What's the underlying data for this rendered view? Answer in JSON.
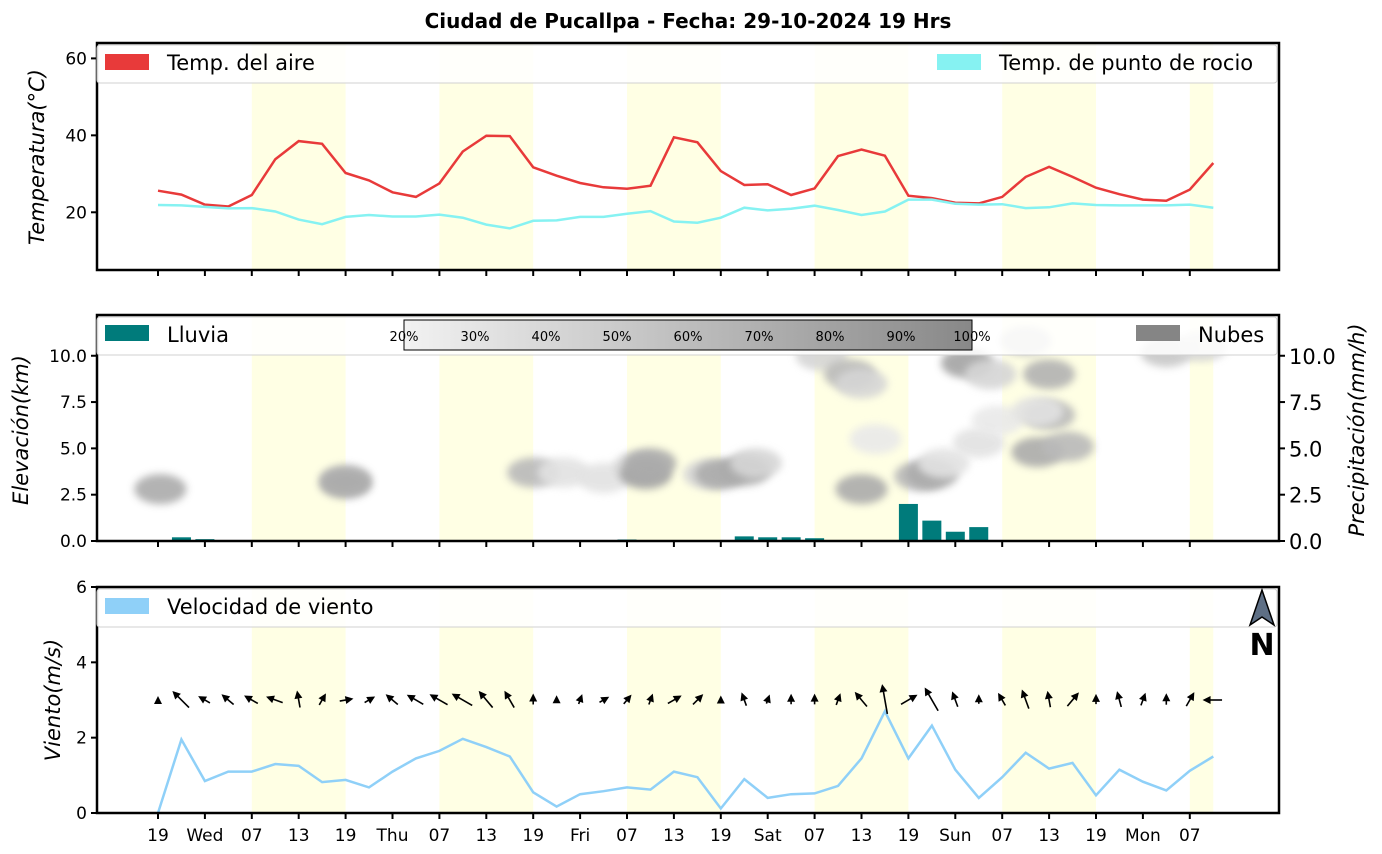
{
  "title": "Ciudad de Pucallpa   -   Fecha: 29-10-2024 19 Hrs",
  "colors": {
    "air_temp": "#e83a3a",
    "dew_point": "#86f2f2",
    "rain": "#007b7b",
    "clouds": "#858585",
    "wind": "#8fd0f8",
    "day_band": "#ffffe4",
    "arrow": "#000000"
  },
  "x_ticks": [
    "19",
    "Wed",
    "07",
    "13",
    "19",
    "Thu",
    "07",
    "13",
    "19",
    "Fri",
    "07",
    "13",
    "19",
    "Sat",
    "07",
    "13",
    "19",
    "Sun",
    "07",
    "13",
    "19",
    "Mon",
    "07"
  ],
  "daytime_bands": [
    [
      2,
      4
    ],
    [
      6,
      8
    ],
    [
      10,
      12
    ],
    [
      14,
      16
    ],
    [
      18,
      20
    ],
    [
      22,
      22.5
    ]
  ],
  "chart_data": [
    {
      "type": "line",
      "panel": "temperature",
      "ylabel": "Temperatura(°C)",
      "ylim": [
        5,
        64
      ],
      "yticks": [
        20,
        40,
        60
      ],
      "x_step_hours": 3,
      "series": [
        {
          "name": "Temp. del aire",
          "values": [
            25.6,
            24.6,
            22.0,
            21.5,
            24.5,
            33.8,
            38.5,
            37.8,
            30.2,
            28.3,
            25.2,
            24.0,
            27.5,
            35.8,
            39.9,
            39.8,
            31.7,
            29.5,
            27.6,
            26.5,
            26.1,
            26.9,
            39.5,
            38.2,
            30.7,
            27.1,
            27.3,
            24.5,
            26.2,
            34.6,
            36.3,
            34.7,
            24.3,
            23.7,
            22.5,
            22.3,
            24.0,
            29.2,
            31.8,
            29.2,
            26.4,
            24.7,
            23.3,
            23.0,
            25.9,
            32.8
          ]
        },
        {
          "name": "Temp. de punto de rocio",
          "values": [
            21.9,
            21.8,
            21.4,
            21.0,
            21.1,
            20.2,
            18.1,
            16.9,
            18.8,
            19.3,
            18.9,
            18.9,
            19.4,
            18.6,
            16.8,
            15.8,
            17.8,
            17.9,
            18.8,
            18.8,
            19.6,
            20.3,
            17.6,
            17.3,
            18.6,
            21.2,
            20.5,
            20.9,
            21.7,
            20.6,
            19.3,
            20.2,
            23.3,
            23.3,
            22.2,
            22.0,
            22.1,
            21.1,
            21.3,
            22.3,
            21.9,
            21.8,
            21.8,
            21.8,
            22.0,
            21.2
          ]
        }
      ],
      "legend": "top, spanning"
    },
    {
      "type": "bar",
      "panel": "precipitation_clouds",
      "ylabel": "Elevación(km)",
      "ylabel_right": "Precipitación(mm/h)",
      "ylim": [
        0,
        12.2
      ],
      "yticks": [
        0.0,
        2.5,
        5.0,
        7.5,
        10.0
      ],
      "x_step_hours": 3,
      "series": [
        {
          "name": "Lluvia",
          "values": [
            0,
            0.2,
            0.1,
            0,
            0,
            0,
            0,
            0,
            0,
            0,
            0,
            0,
            0,
            0,
            0,
            0,
            0,
            0,
            0,
            0,
            0.08,
            0.03,
            0.03,
            0.03,
            0,
            0.25,
            0.2,
            0.2,
            0.15,
            0.05,
            0.05,
            0.05,
            2.0,
            1.1,
            0.5,
            0.75,
            0,
            0,
            0,
            0,
            0,
            0.03,
            0,
            0,
            0,
            0
          ]
        },
        {
          "name": "Nubes",
          "cloud_cells": [
            {
              "x": 0.1,
              "z": 2.8,
              "cover": 70
            },
            {
              "x": 8.0,
              "z": 3.3,
              "cover": 60
            },
            {
              "x": 8.0,
              "z": 3.1,
              "cover": 70
            },
            {
              "x": 16.0,
              "z": 3.7,
              "cover": 60
            },
            {
              "x": 17.3,
              "z": 3.7,
              "cover": 30
            },
            {
              "x": 19.0,
              "z": 3.4,
              "cover": 30
            },
            {
              "x": 20.5,
              "z": 4.0,
              "cover": 40
            },
            {
              "x": 20.8,
              "z": 3.6,
              "cover": 75
            },
            {
              "x": 21.0,
              "z": 4.2,
              "cover": 70
            },
            {
              "x": 23.5,
              "z": 3.6,
              "cover": 40
            },
            {
              "x": 24.0,
              "z": 3.6,
              "cover": 70
            },
            {
              "x": 25.0,
              "z": 3.8,
              "cover": 70
            },
            {
              "x": 25.5,
              "z": 4.2,
              "cover": 40
            },
            {
              "x": 28.3,
              "z": 10.0,
              "cover": 40
            },
            {
              "x": 29.5,
              "z": 9.0,
              "cover": 60
            },
            {
              "x": 30.0,
              "z": 8.5,
              "cover": 40
            },
            {
              "x": 30.0,
              "z": 2.8,
              "cover": 70
            },
            {
              "x": 30.6,
              "z": 5.5,
              "cover": 25
            },
            {
              "x": 32.5,
              "z": 3.5,
              "cover": 60
            },
            {
              "x": 33.0,
              "z": 3.6,
              "cover": 70
            },
            {
              "x": 33.5,
              "z": 4.2,
              "cover": 30
            },
            {
              "x": 34.5,
              "z": 9.6,
              "cover": 75
            },
            {
              "x": 35.5,
              "z": 9.0,
              "cover": 40
            },
            {
              "x": 35.0,
              "z": 5.3,
              "cover": 30
            },
            {
              "x": 35.8,
              "z": 6.5,
              "cover": 25
            },
            {
              "x": 37.0,
              "z": 10.8,
              "cover": 50
            },
            {
              "x": 38.0,
              "z": 9.0,
              "cover": 65
            },
            {
              "x": 38.0,
              "z": 6.8,
              "cover": 60
            },
            {
              "x": 37.5,
              "z": 7.0,
              "cover": 30
            },
            {
              "x": 37.5,
              "z": 4.8,
              "cover": 70
            },
            {
              "x": 38.8,
              "z": 5.1,
              "cover": 60
            },
            {
              "x": 43.0,
              "z": 10.2,
              "cover": 50
            },
            {
              "x": 44.5,
              "z": 10.5,
              "cover": 40
            }
          ]
        }
      ],
      "colorbar_labels": [
        "20%",
        "30%",
        "40%",
        "50%",
        "60%",
        "70%",
        "80%",
        "90%",
        "100%"
      ],
      "legend": "top, spanning"
    },
    {
      "type": "line",
      "panel": "wind",
      "ylabel": "Viento(m/s)",
      "ylim": [
        0,
        6
      ],
      "yticks": [
        0,
        2,
        4,
        6
      ],
      "x_step_hours": 3,
      "series": [
        {
          "name": "Velocidad de viento",
          "values": [
            0.0,
            1.95,
            0.85,
            1.1,
            1.1,
            1.3,
            1.25,
            0.82,
            0.88,
            0.68,
            1.1,
            1.45,
            1.65,
            1.97,
            1.75,
            1.5,
            0.55,
            0.17,
            0.5,
            0.58,
            0.68,
            0.62,
            1.1,
            0.95,
            0.12,
            0.9,
            0.4,
            0.5,
            0.52,
            0.72,
            1.45,
            2.7,
            1.45,
            2.32,
            1.15,
            0.4,
            0.95,
            1.6,
            1.18,
            1.33,
            0.47,
            1.15,
            0.83,
            0.6,
            1.12,
            1.5
          ]
        }
      ],
      "wind_direction_deg": [
        0,
        315,
        300,
        310,
        300,
        290,
        350,
        30,
        80,
        60,
        310,
        300,
        300,
        300,
        320,
        330,
        0,
        0,
        20,
        60,
        40,
        20,
        60,
        45,
        0,
        340,
        20,
        0,
        0,
        20,
        320,
        350,
        60,
        330,
        340,
        0,
        330,
        340,
        350,
        40,
        0,
        345,
        20,
        0,
        30,
        270
      ],
      "legend": "top, spanning"
    }
  ],
  "north_indicator": {
    "label": "N"
  }
}
